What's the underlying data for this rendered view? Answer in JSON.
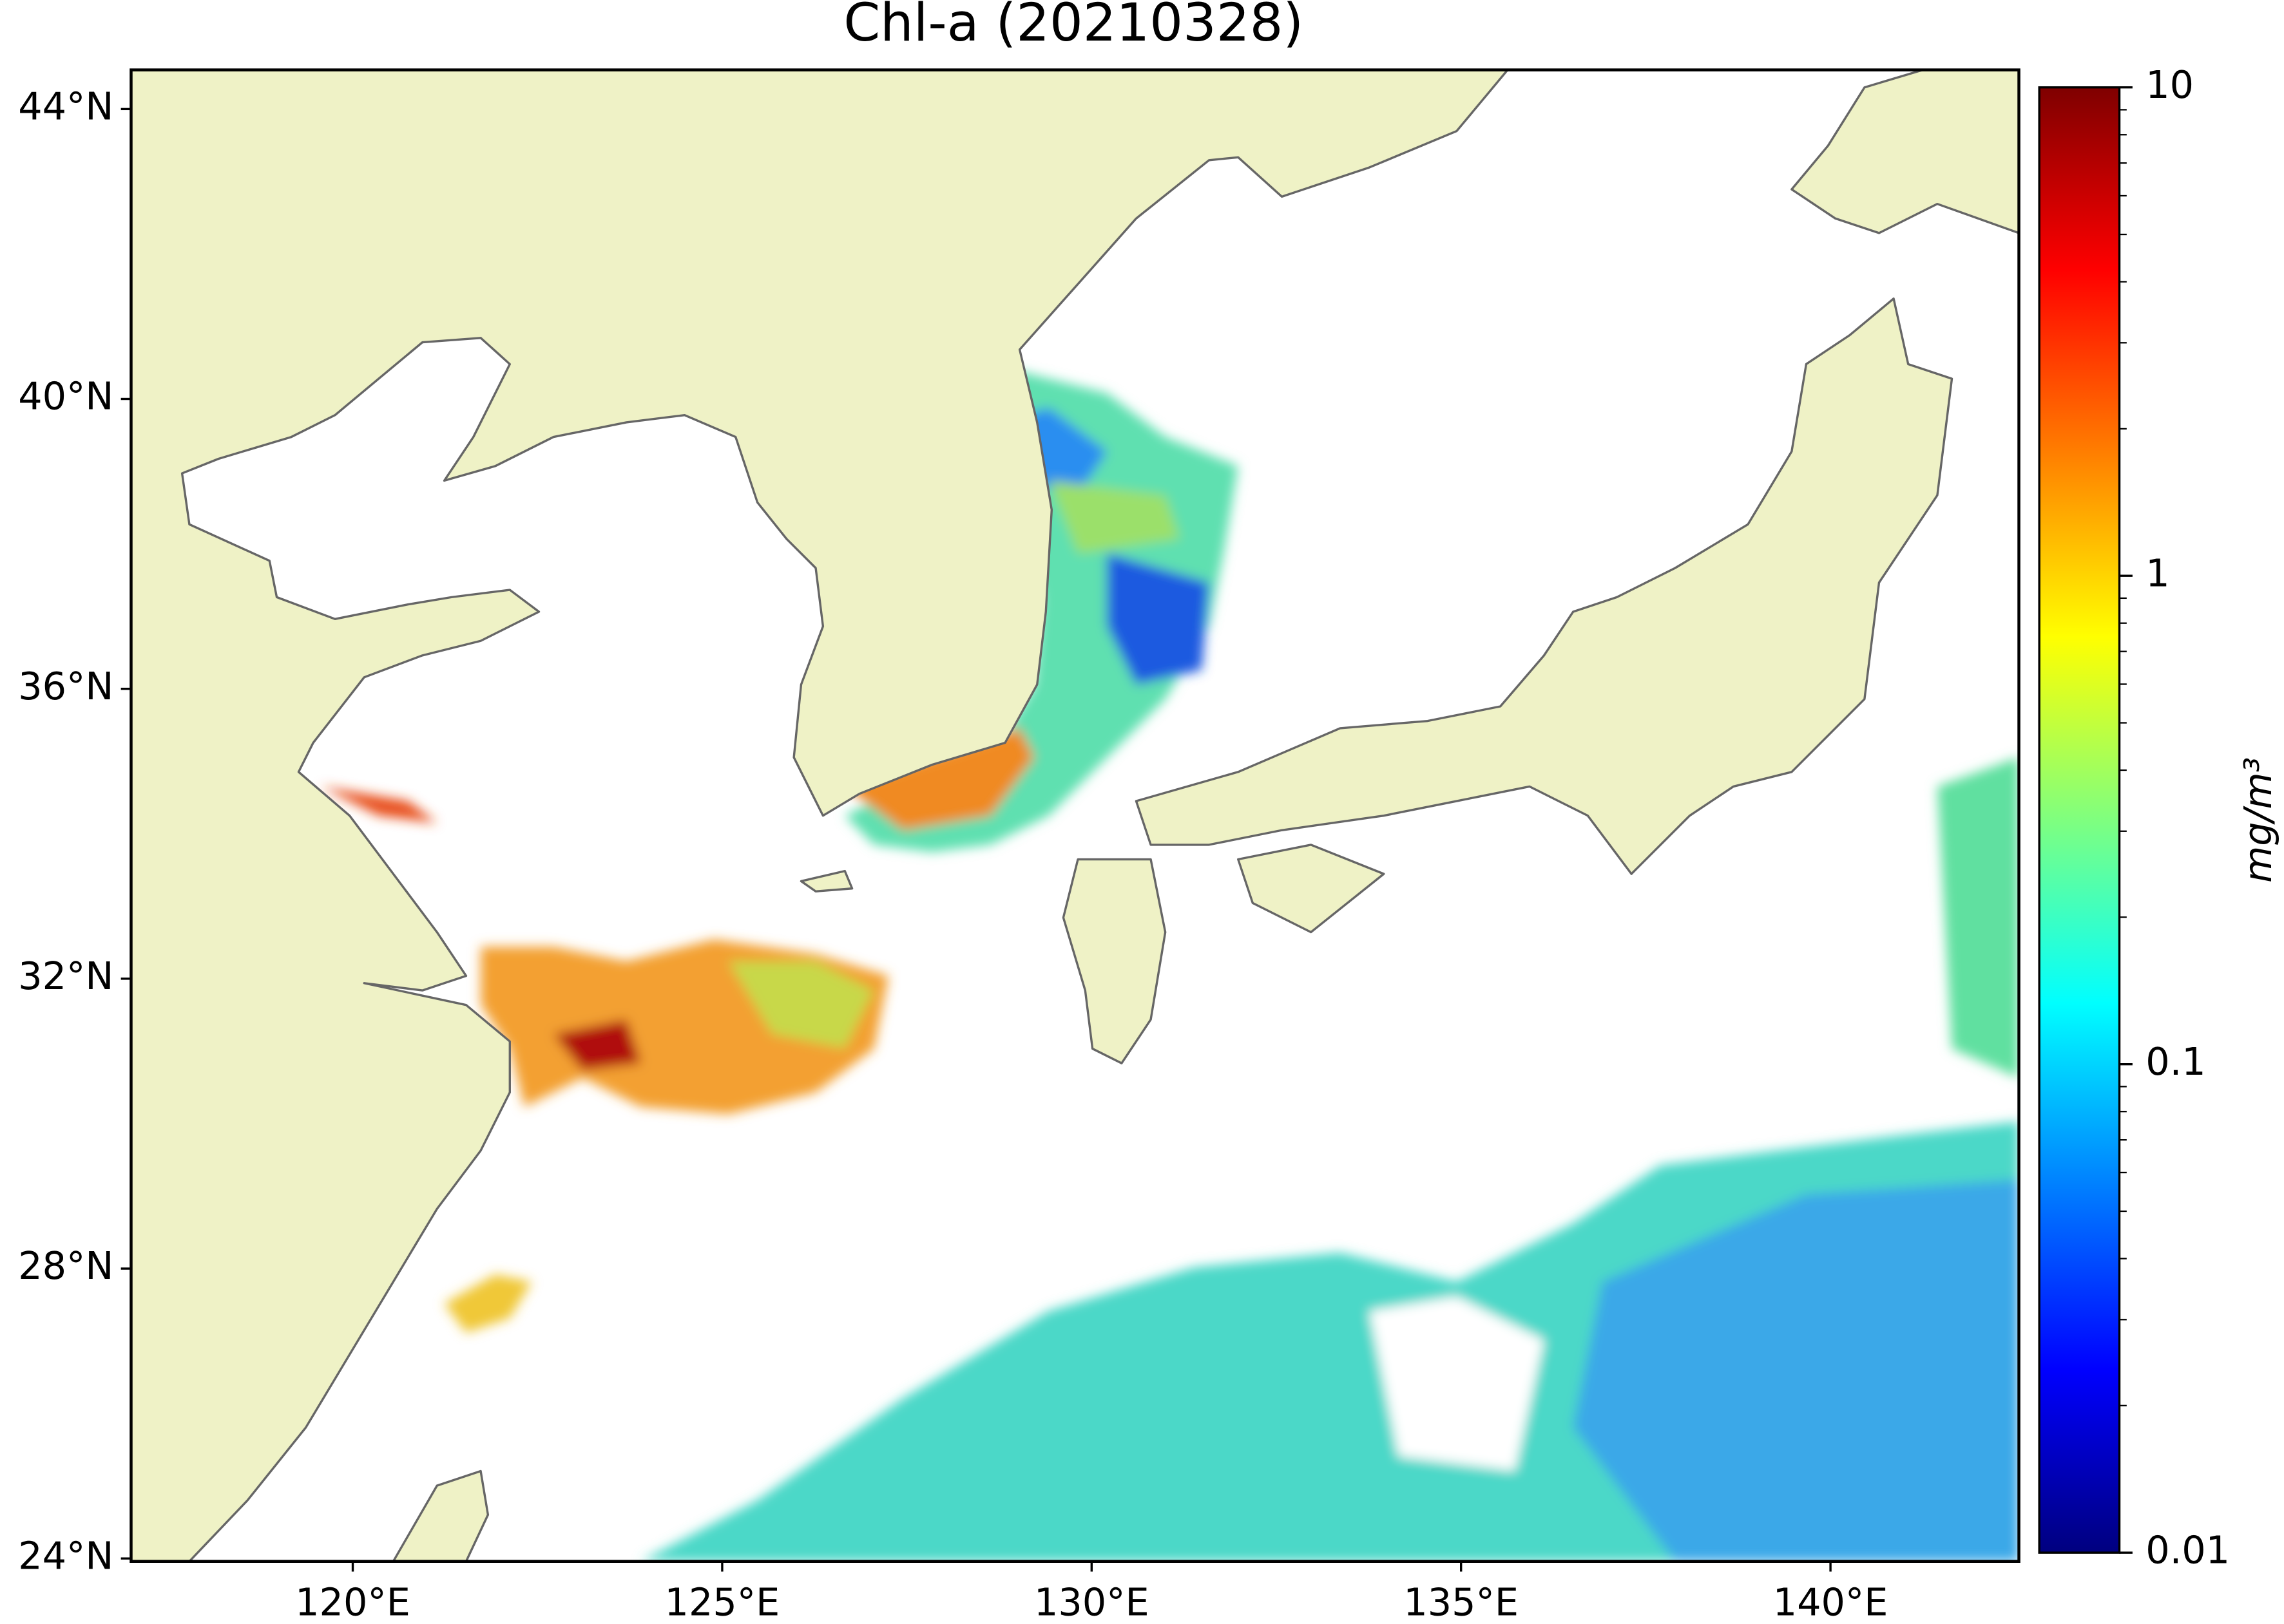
{
  "title": "Chl-a (20210328)",
  "map": {
    "lon_lim": [
      117,
      142.55
    ],
    "lat_lim": [
      23.96,
      44.54
    ],
    "xticks": [
      {
        "value": 120,
        "label": "120°E"
      },
      {
        "value": 125,
        "label": "125°E"
      },
      {
        "value": 130,
        "label": "130°E"
      },
      {
        "value": 135,
        "label": "135°E"
      },
      {
        "value": 140,
        "label": "140°E"
      }
    ],
    "yticks": [
      {
        "value": 24,
        "label": "24°N"
      },
      {
        "value": 28,
        "label": "28°N"
      },
      {
        "value": 32,
        "label": "32°N"
      },
      {
        "value": 36,
        "label": "36°N"
      },
      {
        "value": 40,
        "label": "40°N"
      },
      {
        "value": 44,
        "label": "44°N"
      }
    ],
    "colorbar": {
      "label": "mg/m³",
      "scale": "log",
      "lim": [
        0.01,
        10
      ],
      "ticks": [
        0.01,
        0.1,
        1,
        10
      ],
      "colormap": "jet"
    }
  }
}
